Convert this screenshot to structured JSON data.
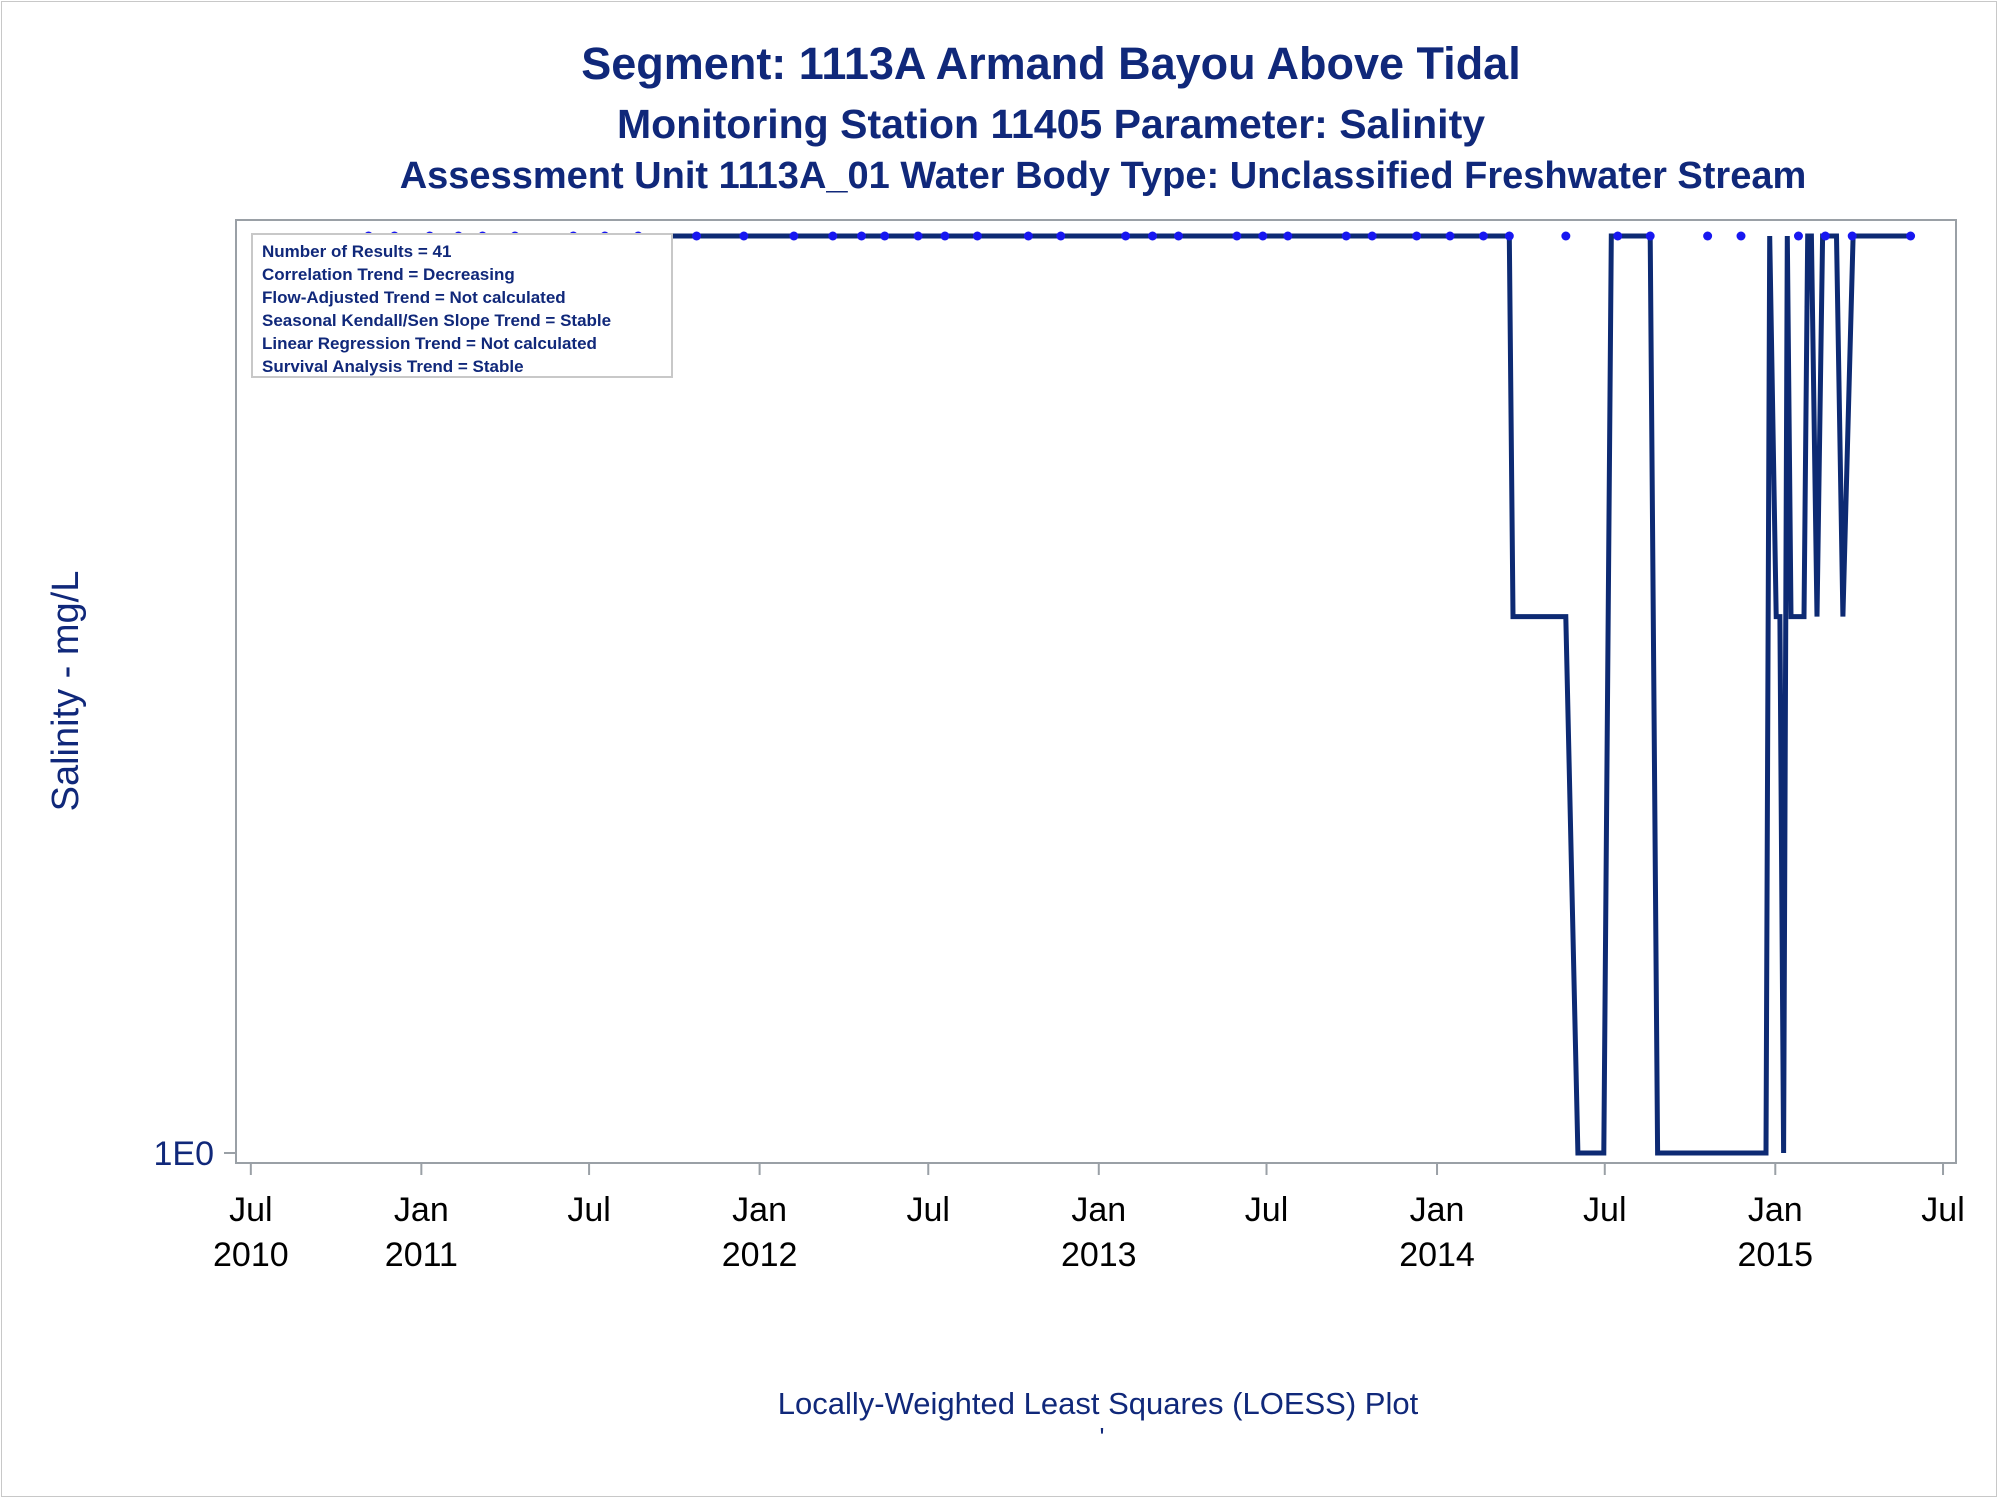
{
  "title": "Segment: 1113A  Armand Bayou Above Tidal",
  "subtitle": "Monitoring Station 11405 Parameter: Salinity",
  "subtitle2": "Assessment Unit 1113A_01   Water Body Type: Unclassified Freshwater Stream",
  "footnote": "Locally-Weighted Least Squares (LOESS) Plot",
  "footnote2": "'",
  "colors": {
    "text": "#10287a",
    "line": "#0d2a73",
    "points": "#1717f0",
    "axis": "#9aa0a6"
  },
  "stats_box": [
    "Number of Results = 41",
    "Correlation Trend = Decreasing",
    "Flow-Adjusted Trend = Not calculated",
    "Seasonal Kendall/Sen Slope Trend = Stable",
    "Linear Regression Trend = Not calculated",
    "Survival Analysis Trend = Stable"
  ],
  "chart_data": {
    "type": "line",
    "ylabel": "Salinity - mg/L",
    "xlabel": "",
    "yscale": "log",
    "yticks": [
      {
        "value": 1,
        "label": "1E0"
      }
    ],
    "ylim": [
      1,
      2
    ],
    "xlim": [
      "2010-06-15",
      "2015-07-15"
    ],
    "xticks": [
      {
        "date": "2010-07-01",
        "label": [
          "Jul",
          "2010"
        ]
      },
      {
        "date": "2011-01-01",
        "label": [
          "Jan",
          "2011"
        ]
      },
      {
        "date": "2011-07-01",
        "label": [
          "Jul",
          ""
        ]
      },
      {
        "date": "2012-01-01",
        "label": [
          "Jan",
          "2012"
        ]
      },
      {
        "date": "2012-07-01",
        "label": [
          "Jul",
          ""
        ]
      },
      {
        "date": "2013-01-01",
        "label": [
          "Jan",
          "2013"
        ]
      },
      {
        "date": "2013-07-01",
        "label": [
          "Jul",
          ""
        ]
      },
      {
        "date": "2014-01-01",
        "label": [
          "Jan",
          "2014"
        ]
      },
      {
        "date": "2014-07-01",
        "label": [
          "Jul",
          ""
        ]
      },
      {
        "date": "2015-01-01",
        "label": [
          "Jan",
          "2015"
        ]
      },
      {
        "date": "2015-07-01",
        "label": [
          "Jul",
          ""
        ]
      }
    ],
    "series": [
      {
        "type": "scatter",
        "x": [
          "2010-11-05",
          "2010-12-03",
          "2011-01-10",
          "2011-02-10",
          "2011-03-08",
          "2011-04-12",
          "2011-06-14",
          "2011-07-18",
          "2011-08-23",
          "2011-10-25",
          "2011-12-15",
          "2012-02-07",
          "2012-03-20",
          "2012-04-20",
          "2012-05-15",
          "2012-06-20",
          "2012-07-19",
          "2012-08-23",
          "2012-10-17",
          "2012-11-21",
          "2013-01-30",
          "2013-02-28",
          "2013-03-28",
          "2013-05-30",
          "2013-06-27",
          "2013-07-24",
          "2013-09-25",
          "2013-10-23",
          "2013-12-10",
          "2014-01-15",
          "2014-02-20",
          "2014-03-20",
          "2014-05-20",
          "2014-07-15",
          "2014-08-19",
          "2014-10-20",
          "2014-11-25",
          "2015-01-26",
          "2015-02-24",
          "2015-03-25",
          "2015-05-27"
        ],
        "y": [
          2,
          2,
          2,
          2,
          2,
          2,
          2,
          2,
          2,
          2,
          2,
          2,
          2,
          2,
          2,
          2,
          2,
          2,
          2,
          2,
          2,
          2,
          2,
          2,
          2,
          2,
          2,
          2,
          2,
          2,
          2,
          2,
          2,
          2,
          2,
          2,
          2,
          2,
          2,
          2,
          2
        ]
      },
      {
        "type": "line",
        "x": [
          "2010-11-05",
          "2014-03-20",
          "2014-03-24",
          "2014-05-20",
          "2014-06-02",
          "2014-06-30",
          "2014-07-08",
          "2014-08-19",
          "2014-08-27",
          "2014-12-22",
          "2014-12-26",
          "2015-01-02",
          "2015-01-06",
          "2015-01-10",
          "2015-01-14",
          "2015-01-18",
          "2015-02-01",
          "2015-02-05",
          "2015-02-09",
          "2015-02-15",
          "2015-02-21",
          "2015-02-28",
          "2015-03-08",
          "2015-03-15",
          "2015-03-26",
          "2015-04-09",
          "2015-04-15",
          "2015-05-27"
        ],
        "y": [
          2,
          2,
          1.5,
          1.5,
          1,
          1,
          2,
          2,
          1,
          1,
          2,
          1.5,
          1.5,
          1,
          2,
          1.5,
          1.5,
          2,
          2,
          1.5,
          2,
          2,
          2,
          1.5,
          2,
          2,
          2,
          2
        ]
      }
    ]
  }
}
